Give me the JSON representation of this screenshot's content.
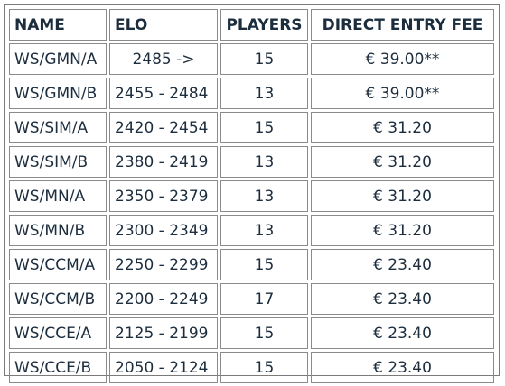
{
  "table": {
    "headers": {
      "name": "NAME",
      "elo": "ELO",
      "players": "PLAYERS",
      "fee": "DIRECT ENTRY FEE"
    },
    "rows": [
      {
        "name": "WS/GMN/A",
        "elo": "2485 ->",
        "players": "15",
        "fee": "€ 39.00**"
      },
      {
        "name": "WS/GMN/B",
        "elo": "2455 - 2484",
        "players": "13",
        "fee": "€ 39.00**"
      },
      {
        "name": "WS/SIM/A",
        "elo": "2420 - 2454",
        "players": "15",
        "fee": "€ 31.20"
      },
      {
        "name": "WS/SIM/B",
        "elo": "2380 - 2419",
        "players": "13",
        "fee": "€ 31.20"
      },
      {
        "name": "WS/MN/A",
        "elo": "2350 - 2379",
        "players": "13",
        "fee": "€ 31.20"
      },
      {
        "name": "WS/MN/B",
        "elo": "2300 - 2349",
        "players": "13",
        "fee": "€ 31.20"
      },
      {
        "name": "WS/CCM/A",
        "elo": "2250 - 2299",
        "players": "15",
        "fee": "€ 23.40"
      },
      {
        "name": "WS/CCM/B",
        "elo": "2200 - 2249",
        "players": "17",
        "fee": "€ 23.40"
      },
      {
        "name": "WS/CCE/A",
        "elo": "2125 - 2199",
        "players": "15",
        "fee": "€ 23.40"
      },
      {
        "name": "WS/CCE/B",
        "elo": "2050 - 2124",
        "players": "15",
        "fee": "€ 23.40"
      }
    ]
  }
}
